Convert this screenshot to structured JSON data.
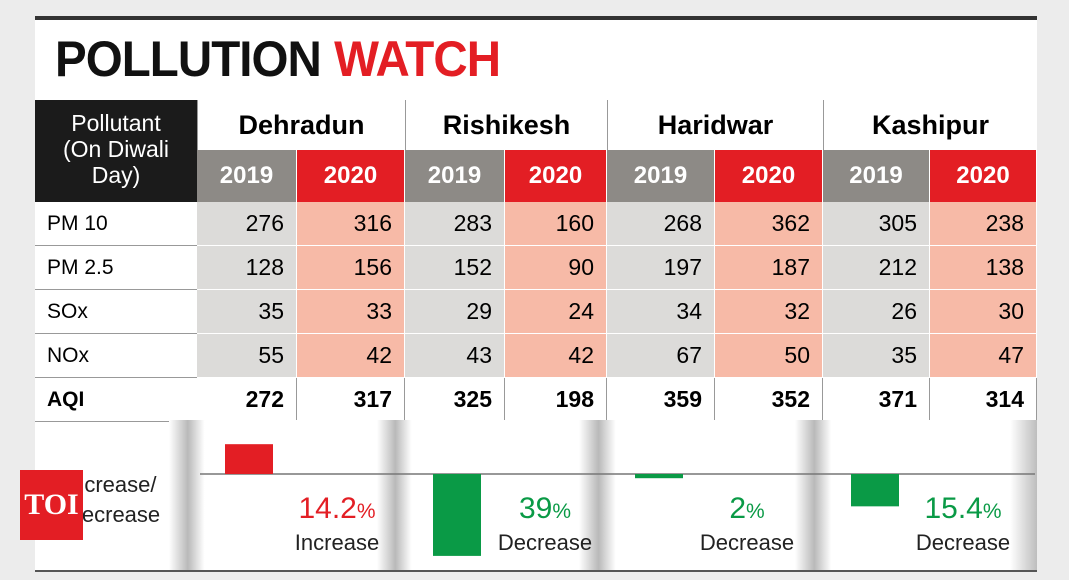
{
  "title_parts": [
    "POLLUTION",
    "WATCH"
  ],
  "header_label": "Pollutant (On Diwali Day)",
  "cities": [
    "Dehradun",
    "Rishikesh",
    "Haridwar",
    "Kashipur"
  ],
  "years": [
    "2019",
    "2020"
  ],
  "rows": [
    {
      "label": "PM 10",
      "values": [
        276,
        316,
        283,
        160,
        268,
        362,
        305,
        238
      ]
    },
    {
      "label": "PM 2.5",
      "values": [
        128,
        156,
        152,
        90,
        197,
        187,
        212,
        138
      ]
    },
    {
      "label": "SOx",
      "values": [
        35,
        33,
        29,
        24,
        34,
        32,
        26,
        30
      ]
    },
    {
      "label": "NOx",
      "values": [
        55,
        42,
        43,
        42,
        67,
        50,
        35,
        47
      ]
    },
    {
      "label": "AQI",
      "values": [
        272,
        317,
        325,
        198,
        359,
        352,
        371,
        314
      ]
    }
  ],
  "change": {
    "label": "Increase/ Decrease",
    "values": [
      14.2,
      -39,
      -2,
      -15.4
    ],
    "value_labels": [
      "14.2",
      "39",
      "2",
      "15.4"
    ],
    "unit": "%",
    "directions": [
      "Increase",
      "Decrease",
      "Decrease",
      "Decrease"
    ]
  },
  "logo": "TOI"
}
